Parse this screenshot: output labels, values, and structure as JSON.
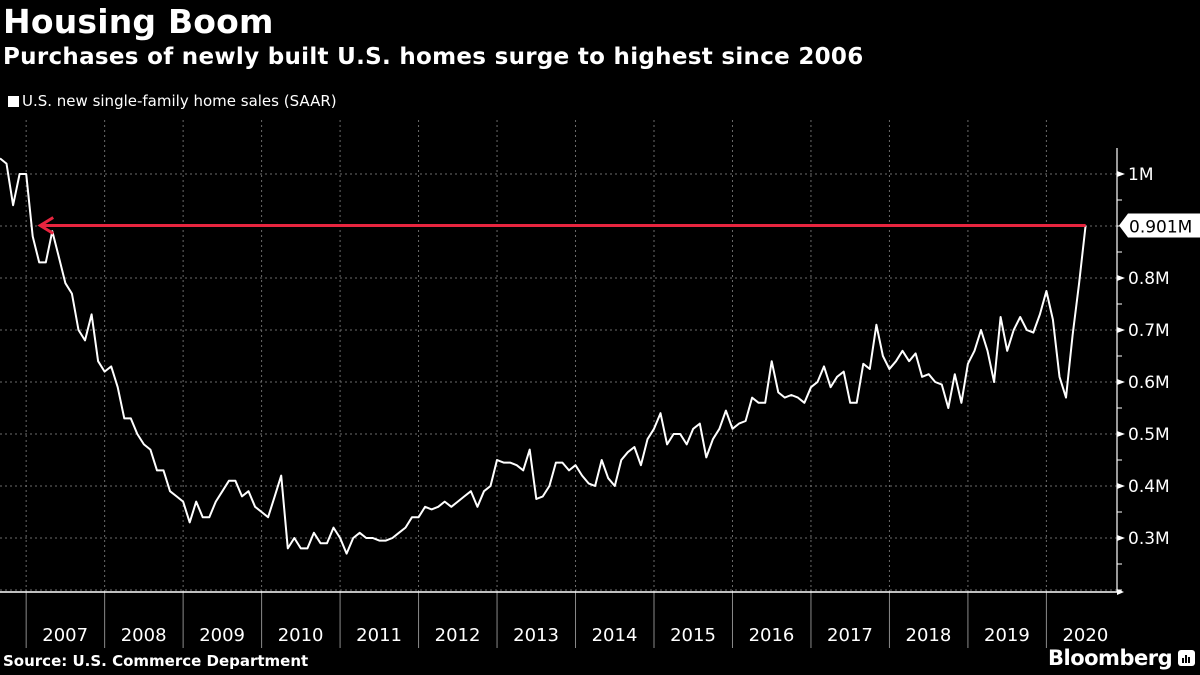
{
  "header": {
    "title": "Housing Boom",
    "subtitle": "Purchases of newly built U.S. homes surge to highest since 2006"
  },
  "footer": {
    "source": "Source: U.S. Commerce Department",
    "brand": "Bloomberg"
  },
  "colors": {
    "background": "#000000",
    "line": "#ffffff",
    "annotation": "#e8253f",
    "grid": "#6b6b6b"
  },
  "chart_data": {
    "type": "line",
    "title": "Housing Boom",
    "subtitle": "Purchases of newly built U.S. homes surge to highest since 2006",
    "xlabel": "",
    "ylabel": "",
    "legend": [
      "U.S. new single-family home sales (SAAR)"
    ],
    "legend_position": "top-left",
    "grid": true,
    "start_month": "2006-09",
    "frequency": "monthly",
    "ylim": [
      0.2,
      1.05
    ],
    "y_unit": "M",
    "y_ticks": [
      0.3,
      0.4,
      0.5,
      0.6,
      0.7,
      0.8,
      1.0
    ],
    "y_tick_labels": [
      "0.3M",
      "0.4M",
      "0.5M",
      "0.6M",
      "0.7M",
      "0.8M",
      "1M"
    ],
    "x_tick_labels": [
      "2007",
      "2008",
      "2009",
      "2010",
      "2011",
      "2012",
      "2013",
      "2014",
      "2015",
      "2016",
      "2017",
      "2018",
      "2019",
      "2020"
    ],
    "annotation": {
      "label": "0.901M",
      "value": 0.901,
      "from_month": "2020-07",
      "to_month": "2007-03",
      "note": "arrow pointing back to last comparable level"
    },
    "series": [
      {
        "name": "U.S. new single-family home sales (SAAR)",
        "values": [
          1.03,
          1.02,
          0.94,
          1.0,
          1.0,
          0.88,
          0.83,
          0.83,
          0.89,
          0.84,
          0.79,
          0.77,
          0.7,
          0.68,
          0.73,
          0.64,
          0.62,
          0.63,
          0.59,
          0.53,
          0.53,
          0.5,
          0.48,
          0.47,
          0.43,
          0.43,
          0.39,
          0.38,
          0.37,
          0.33,
          0.37,
          0.34,
          0.34,
          0.37,
          0.39,
          0.41,
          0.41,
          0.38,
          0.39,
          0.36,
          0.35,
          0.34,
          0.38,
          0.42,
          0.28,
          0.3,
          0.28,
          0.28,
          0.31,
          0.29,
          0.29,
          0.32,
          0.3,
          0.27,
          0.3,
          0.31,
          0.3,
          0.3,
          0.295,
          0.295,
          0.3,
          0.31,
          0.32,
          0.34,
          0.34,
          0.36,
          0.355,
          0.36,
          0.37,
          0.36,
          0.37,
          0.38,
          0.39,
          0.36,
          0.39,
          0.4,
          0.45,
          0.445,
          0.445,
          0.44,
          0.43,
          0.47,
          0.375,
          0.38,
          0.4,
          0.445,
          0.445,
          0.43,
          0.44,
          0.42,
          0.405,
          0.4,
          0.45,
          0.415,
          0.4,
          0.45,
          0.465,
          0.475,
          0.44,
          0.49,
          0.51,
          0.54,
          0.48,
          0.5,
          0.5,
          0.48,
          0.51,
          0.52,
          0.455,
          0.49,
          0.51,
          0.545,
          0.51,
          0.52,
          0.525,
          0.57,
          0.56,
          0.56,
          0.64,
          0.58,
          0.57,
          0.575,
          0.57,
          0.56,
          0.59,
          0.6,
          0.63,
          0.59,
          0.61,
          0.62,
          0.56,
          0.56,
          0.635,
          0.625,
          0.71,
          0.65,
          0.625,
          0.64,
          0.66,
          0.64,
          0.655,
          0.61,
          0.615,
          0.6,
          0.595,
          0.55,
          0.615,
          0.56,
          0.635,
          0.66,
          0.7,
          0.66,
          0.6,
          0.725,
          0.66,
          0.7,
          0.725,
          0.7,
          0.695,
          0.73,
          0.775,
          0.72,
          0.61,
          0.57,
          0.69,
          0.79,
          0.901
        ]
      }
    ]
  }
}
